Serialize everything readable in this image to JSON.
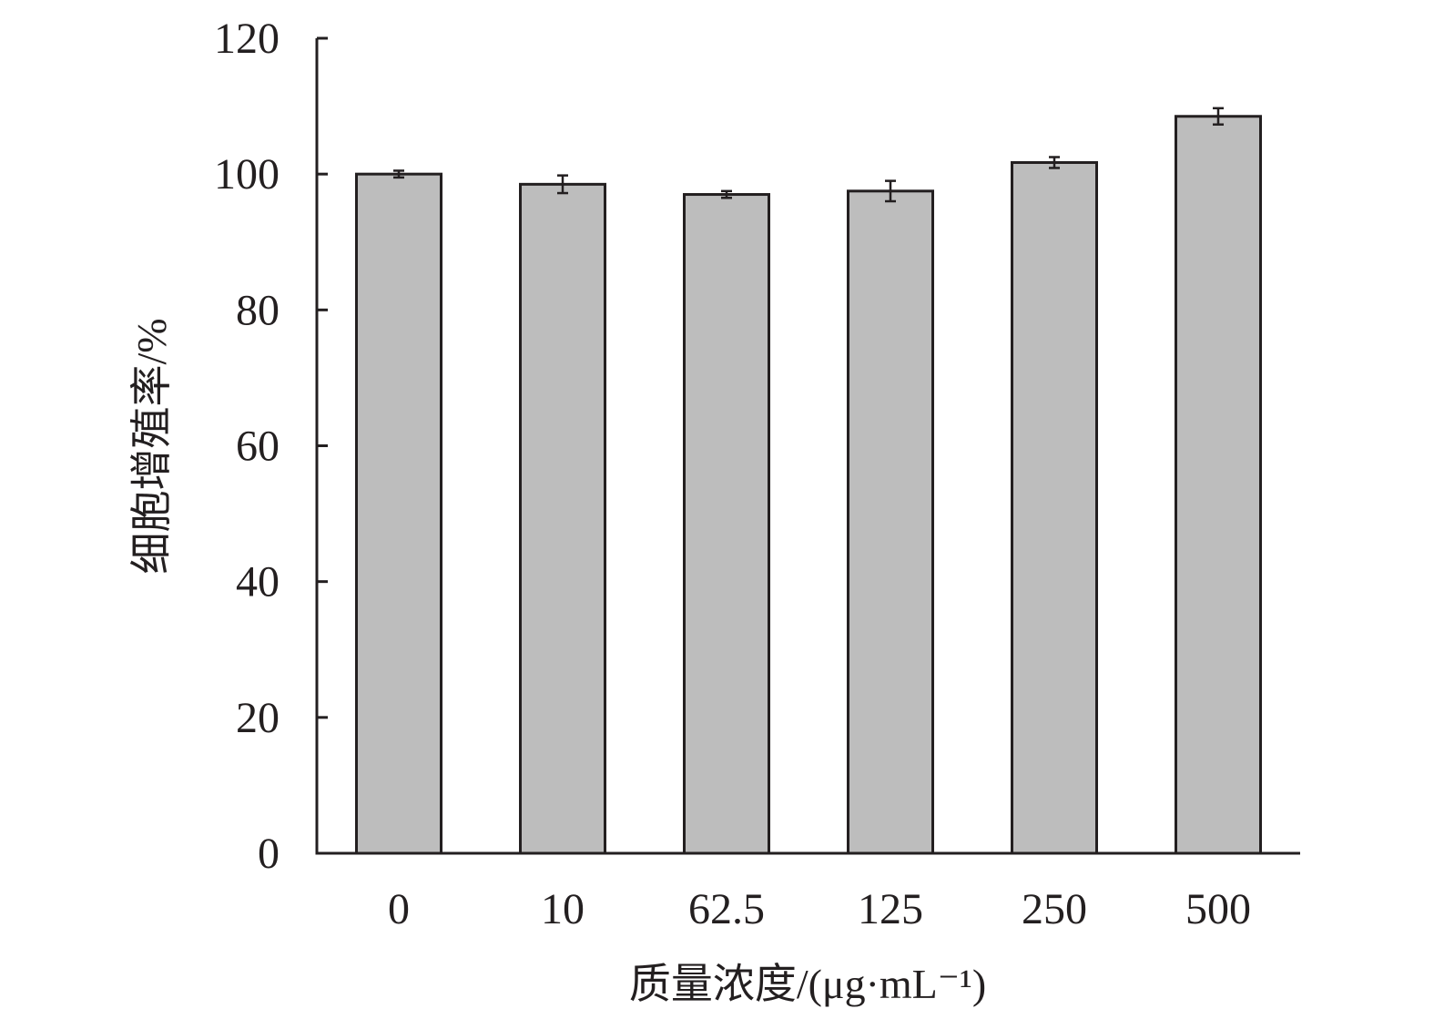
{
  "chart_data": {
    "type": "bar",
    "categories": [
      "0",
      "10",
      "62.5",
      "125",
      "250",
      "500"
    ],
    "values": [
      100.0,
      98.5,
      97.0,
      97.5,
      101.7,
      108.5
    ],
    "errors": [
      0.5,
      1.3,
      0.5,
      1.5,
      0.8,
      1.2
    ],
    "xlabel": "质量浓度/(μg·mL⁻¹)",
    "ylabel": "细胞增殖率/%",
    "ylim": [
      0,
      120
    ],
    "yticks": [
      "0",
      "20",
      "40",
      "60",
      "80",
      "100",
      "120"
    ],
    "grid": false,
    "legend": "none",
    "colors": {
      "bar_fill": "#bdbdbd",
      "bar_stroke": "#231f20",
      "axis": "#231f20"
    }
  }
}
